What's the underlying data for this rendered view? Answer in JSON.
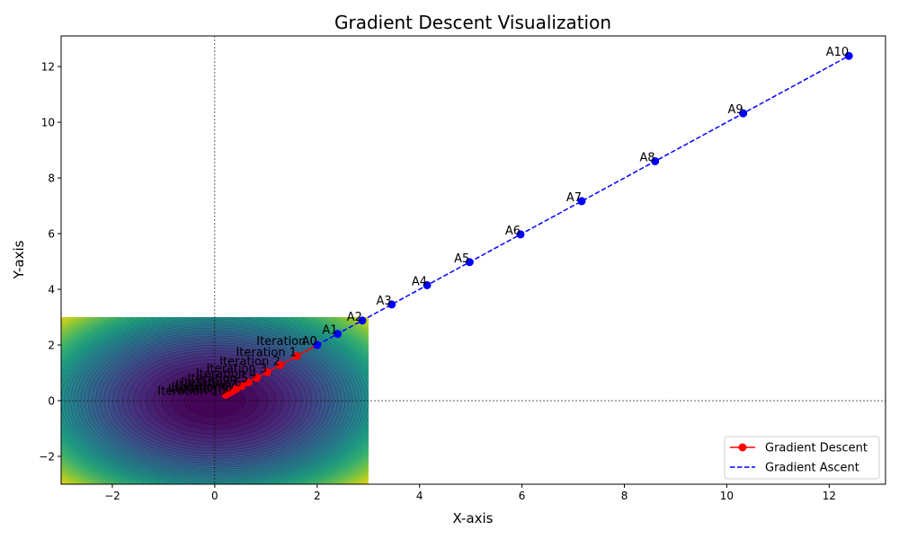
{
  "chart_data": {
    "type": "line",
    "title": "Gradient Descent Visualization",
    "xlabel": "X-axis",
    "ylabel": "Y-axis",
    "xlim": [
      -3,
      13.1
    ],
    "ylim": [
      -3,
      13.1
    ],
    "xticks": [
      -2,
      0,
      2,
      4,
      6,
      8,
      10,
      12
    ],
    "yticks": [
      -2,
      0,
      2,
      4,
      6,
      8,
      10,
      12
    ],
    "tick_labels_x": [
      "−2",
      "0",
      "2",
      "4",
      "6",
      "8",
      "10",
      "12"
    ],
    "tick_labels_y": [
      "−2",
      "0",
      "2",
      "4",
      "6",
      "8",
      "10",
      "12"
    ],
    "contour": {
      "xrange": [
        -3,
        3
      ],
      "yrange": [
        -3,
        3
      ],
      "function": "x^2 + y^2",
      "colormap": "viridis"
    },
    "legend_position": "lower right",
    "series": [
      {
        "name": "Gradient Descent",
        "color": "#ff0000",
        "style": "solid",
        "marker": "circle",
        "x": [
          2.0,
          1.6,
          1.28,
          1.024,
          0.819,
          0.655,
          0.524,
          0.419,
          0.336,
          0.268,
          0.215
        ],
        "y": [
          2.0,
          1.6,
          1.28,
          1.024,
          0.819,
          0.655,
          0.524,
          0.419,
          0.336,
          0.268,
          0.215
        ],
        "point_labels": [
          "Iteration 0",
          "Iteration 1",
          "Iteration 2",
          "Iteration 3",
          "Iteration 4",
          "Iteration 5",
          "Iteration 6",
          "Iteration 7",
          "Iteration 8",
          "Iteration 9",
          "Iteration 10"
        ]
      },
      {
        "name": "Gradient Ascent",
        "color": "#0000ff",
        "style": "dashed",
        "marker": "circle",
        "x": [
          2.0,
          2.4,
          2.88,
          3.456,
          4.147,
          4.977,
          5.972,
          7.166,
          8.6,
          10.32,
          12.383
        ],
        "y": [
          2.0,
          2.4,
          2.88,
          3.456,
          4.147,
          4.977,
          5.972,
          7.166,
          8.6,
          10.32,
          12.383
        ],
        "point_labels": [
          "A0",
          "A1",
          "A2",
          "A3",
          "A4",
          "A5",
          "A6",
          "A7",
          "A8",
          "A9",
          "A10"
        ]
      }
    ]
  }
}
